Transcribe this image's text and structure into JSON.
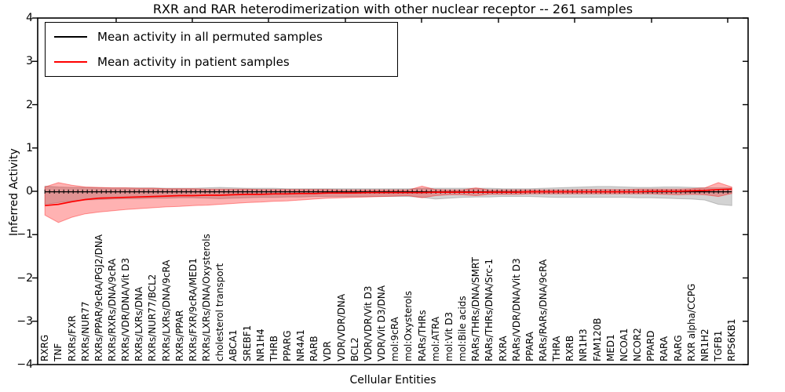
{
  "figure": {
    "title": "RXR and RAR heterodimerization with other nuclear receptor -- 261 samples"
  },
  "chart_data": {
    "type": "line",
    "title": "RXR and RAR heterodimerization with other nuclear receptor -- 261 samples",
    "xlabel": "Cellular Entities",
    "ylabel": "Inferred Activity",
    "ylim": [
      -4,
      4
    ],
    "yticks": [
      4,
      3,
      2,
      1,
      0,
      -1,
      -2,
      -3,
      -4
    ],
    "ytick_labels": [
      "4",
      "3",
      "2",
      "1",
      "0",
      "−1",
      "−2",
      "−3",
      "−4"
    ],
    "grid": false,
    "legend_position": "upper left",
    "categories": [
      "RXRG",
      "TNF",
      "RXRs/FXR",
      "RXRs/NUR77",
      "RXRs/PPAR/9cRA/PGJ2/DNA",
      "RXRs/RXRs/DNA/9cRA",
      "RXRs/VDR/DNA/Vit D3",
      "RXRs/LXRs/DNA",
      "RXRs/NUR77/BCL2",
      "RXRs/LXRs/DNA/9cRA",
      "RXRs/PPAR",
      "RXRs/FXR/9cRA/MED1",
      "RXRs/LXRs/DNA/Oxysterols",
      "cholesterol transport",
      "ABCA1",
      "SREBF1",
      "NR1H4",
      "THRB",
      "PPARG",
      "NR4A1",
      "RARB",
      "VDR",
      "VDR/VDR/DNA",
      "BCL2",
      "VDR/VDR/Vit D3",
      "VDR/Vit D3/DNA",
      "mol:9cRA",
      "mol:Oxysterols",
      "RARs/THRs",
      "mol:ATRA",
      "mol:Vit D3",
      "mol:Bile acids",
      "RARs/THRs/DNA/SMRT",
      "RARs/THRs/DNA/Src-1",
      "RXRA",
      "RARs/VDR/DNA/Vit D3",
      "PPARA",
      "RARs/RARs/DNA/9cRA",
      "THRA",
      "RXRB",
      "NR1H3",
      "FAM120B",
      "MED1",
      "NCOA1",
      "NCOR2",
      "PPARD",
      "RARA",
      "RARG",
      "RXR alpha/CCPG",
      "NR1H2",
      "TGFB1",
      "RPS6KB1"
    ],
    "series": [
      {
        "name": "Mean activity in all permuted samples",
        "color": "#000000",
        "values": [
          -0.01,
          -0.01,
          -0.01,
          -0.01,
          -0.01,
          -0.01,
          -0.01,
          -0.01,
          -0.01,
          -0.01,
          -0.01,
          -0.01,
          -0.01,
          -0.01,
          -0.01,
          -0.01,
          -0.01,
          -0.01,
          -0.01,
          -0.01,
          -0.01,
          -0.01,
          -0.01,
          -0.01,
          -0.01,
          -0.01,
          -0.01,
          -0.01,
          -0.01,
          -0.01,
          -0.01,
          -0.01,
          -0.01,
          -0.01,
          -0.01,
          -0.01,
          -0.01,
          -0.01,
          -0.01,
          -0.01,
          -0.01,
          -0.01,
          -0.01,
          -0.01,
          -0.01,
          -0.01,
          -0.01,
          -0.01,
          -0.01,
          -0.01,
          -0.01,
          -0.01
        ]
      },
      {
        "name": "Mean activity in patient samples",
        "color": "#ff0000",
        "values": [
          -0.33,
          -0.3,
          -0.24,
          -0.19,
          -0.16,
          -0.15,
          -0.14,
          -0.13,
          -0.12,
          -0.11,
          -0.1,
          -0.1,
          -0.09,
          -0.09,
          -0.08,
          -0.07,
          -0.07,
          -0.06,
          -0.06,
          -0.05,
          -0.05,
          -0.04,
          -0.04,
          -0.04,
          -0.03,
          -0.03,
          -0.03,
          -0.03,
          -0.03,
          -0.02,
          -0.02,
          -0.02,
          -0.02,
          -0.02,
          -0.02,
          -0.02,
          -0.01,
          -0.01,
          -0.01,
          -0.01,
          -0.01,
          -0.01,
          -0.01,
          -0.01,
          -0.01,
          0.0,
          0.0,
          0.0,
          0.01,
          0.02,
          0.04,
          0.05
        ]
      }
    ],
    "bands": [
      {
        "name": "permuted-samples-range",
        "color": "#808080",
        "alpha": 0.35,
        "high": [
          0.12,
          0.1,
          0.09,
          0.09,
          0.08,
          0.08,
          0.08,
          0.08,
          0.08,
          0.07,
          0.07,
          0.07,
          0.08,
          0.09,
          0.08,
          0.07,
          0.07,
          0.07,
          0.06,
          0.06,
          0.06,
          0.06,
          0.06,
          0.06,
          0.06,
          0.06,
          0.06,
          0.06,
          0.07,
          0.07,
          0.07,
          0.07,
          0.07,
          0.07,
          0.06,
          0.06,
          0.06,
          0.07,
          0.08,
          0.09,
          0.1,
          0.11,
          0.11,
          0.1,
          0.09,
          0.09,
          0.1,
          0.1,
          0.09,
          0.08,
          0.08,
          0.08
        ],
        "low": [
          -0.3,
          -0.26,
          -0.22,
          -0.2,
          -0.19,
          -0.18,
          -0.17,
          -0.17,
          -0.16,
          -0.16,
          -0.15,
          -0.15,
          -0.16,
          -0.17,
          -0.16,
          -0.15,
          -0.14,
          -0.14,
          -0.13,
          -0.13,
          -0.12,
          -0.12,
          -0.12,
          -0.12,
          -0.12,
          -0.12,
          -0.12,
          -0.12,
          -0.14,
          -0.18,
          -0.16,
          -0.14,
          -0.13,
          -0.13,
          -0.12,
          -0.12,
          -0.12,
          -0.13,
          -0.14,
          -0.14,
          -0.14,
          -0.14,
          -0.14,
          -0.14,
          -0.15,
          -0.15,
          -0.16,
          -0.17,
          -0.18,
          -0.2,
          -0.3,
          -0.33
        ]
      },
      {
        "name": "patient-samples-range",
        "color": "#ff0000",
        "alpha": 0.3,
        "high": [
          0.1,
          0.2,
          0.14,
          0.1,
          0.09,
          0.08,
          0.08,
          0.07,
          0.07,
          0.06,
          0.06,
          0.06,
          0.05,
          0.05,
          0.05,
          0.05,
          0.04,
          0.04,
          0.04,
          0.04,
          0.04,
          0.04,
          0.03,
          0.03,
          0.03,
          0.03,
          0.03,
          0.03,
          0.12,
          0.04,
          0.03,
          0.03,
          0.08,
          0.03,
          0.03,
          0.03,
          0.03,
          0.03,
          0.03,
          0.03,
          0.04,
          0.04,
          0.04,
          0.04,
          0.05,
          0.05,
          0.05,
          0.05,
          0.06,
          0.08,
          0.2,
          0.1
        ],
        "low": [
          -0.55,
          -0.72,
          -0.6,
          -0.52,
          -0.48,
          -0.45,
          -0.42,
          -0.4,
          -0.38,
          -0.36,
          -0.35,
          -0.33,
          -0.32,
          -0.3,
          -0.28,
          -0.26,
          -0.25,
          -0.23,
          -0.22,
          -0.2,
          -0.18,
          -0.16,
          -0.15,
          -0.14,
          -0.13,
          -0.12,
          -0.11,
          -0.1,
          -0.15,
          -0.1,
          -0.08,
          -0.08,
          -0.1,
          -0.07,
          -0.07,
          -0.07,
          -0.06,
          -0.06,
          -0.06,
          -0.06,
          -0.06,
          -0.06,
          -0.06,
          -0.06,
          -0.06,
          -0.06,
          -0.07,
          -0.08,
          -0.07,
          -0.08,
          -0.12,
          -0.05
        ]
      }
    ]
  },
  "legend": {
    "items": [
      {
        "label": "Mean activity in all permuted samples",
        "color": "#000000"
      },
      {
        "label": "Mean activity in patient samples",
        "color": "#ff0000"
      }
    ]
  }
}
